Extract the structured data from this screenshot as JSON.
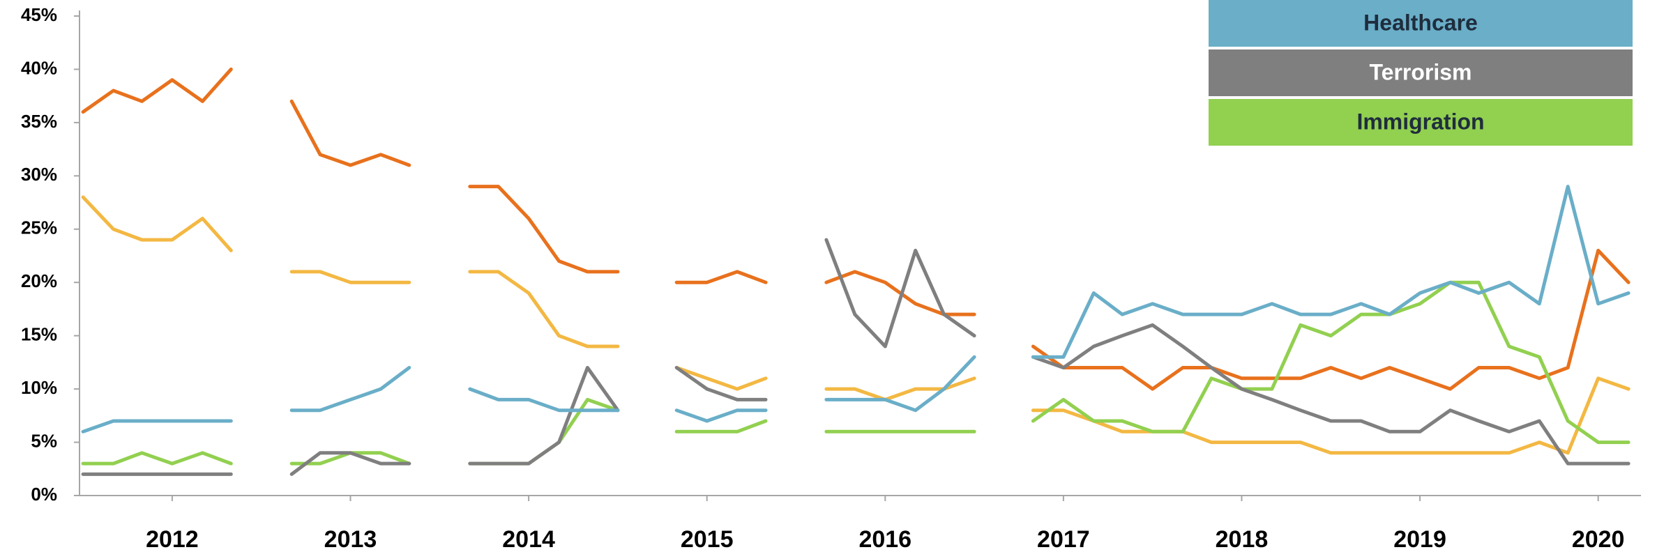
{
  "chart_data": {
    "type": "line",
    "x": [
      2011.5,
      2011.67,
      2011.83,
      2012.0,
      2012.17,
      2012.33,
      2012.5,
      2012.67,
      2012.83,
      2013.0,
      2013.17,
      2013.33,
      2013.5,
      2013.67,
      2013.83,
      2014.0,
      2014.17,
      2014.33,
      2014.5,
      2014.67,
      2014.83,
      2015.0,
      2015.17,
      2015.33,
      2015.5,
      2015.67,
      2015.83,
      2016.0,
      2016.17,
      2016.33,
      2016.5,
      2016.67,
      2016.83,
      2017.0,
      2017.17,
      2017.33,
      2017.5,
      2017.67,
      2017.83,
      2018.0,
      2018.17,
      2018.33,
      2018.5,
      2018.67,
      2018.83,
      2019.0,
      2019.17,
      2019.33,
      2019.5,
      2019.67,
      2019.83,
      2020.0,
      2020.17
    ],
    "series": [
      {
        "name": "Healthcare",
        "color": "#6aaec8",
        "text_color": "#1f2d3d",
        "values": [
          6,
          7,
          7,
          7,
          7,
          7,
          null,
          8,
          8,
          9,
          10,
          12,
          null,
          10,
          9,
          9,
          8,
          8,
          8,
          null,
          8,
          7,
          8,
          8,
          null,
          9,
          9,
          9,
          8,
          10,
          13,
          null,
          13,
          13,
          19,
          17,
          18,
          17,
          17,
          17,
          18,
          17,
          17,
          18,
          17,
          19,
          20,
          19,
          20,
          18,
          29,
          18,
          19
        ]
      },
      {
        "name": "Terrorism",
        "color": "#7f7f7f",
        "text_color": "#ffffff",
        "values": [
          2,
          2,
          2,
          2,
          2,
          2,
          null,
          2,
          4,
          4,
          3,
          3,
          null,
          3,
          3,
          3,
          5,
          12,
          8,
          null,
          12,
          10,
          9,
          9,
          null,
          24,
          17,
          14,
          23,
          17,
          15,
          null,
          13,
          12,
          14,
          15,
          16,
          14,
          12,
          10,
          9,
          8,
          7,
          7,
          6,
          6,
          8,
          7,
          6,
          7,
          3,
          3,
          3
        ]
      },
      {
        "name": "Immigration",
        "color": "#92d050",
        "text_color": "#1f2d3d",
        "values": [
          3,
          3,
          4,
          3,
          4,
          3,
          null,
          3,
          3,
          4,
          4,
          3,
          null,
          3,
          3,
          3,
          5,
          9,
          8,
          null,
          6,
          6,
          6,
          7,
          null,
          6,
          6,
          6,
          6,
          6,
          6,
          null,
          7,
          9,
          7,
          7,
          6,
          6,
          11,
          10,
          10,
          16,
          15,
          17,
          17,
          18,
          20,
          20,
          14,
          13,
          7,
          5,
          5
        ]
      },
      {
        "color": "#e8711d",
        "values": [
          36,
          38,
          37,
          39,
          37,
          40,
          null,
          37,
          32,
          31,
          32,
          31,
          null,
          29,
          29,
          26,
          22,
          21,
          21,
          null,
          20,
          20,
          21,
          20,
          null,
          20,
          21,
          20,
          18,
          17,
          17,
          null,
          14,
          12,
          12,
          12,
          10,
          12,
          12,
          11,
          11,
          11,
          12,
          11,
          12,
          11,
          10,
          12,
          12,
          11,
          12,
          23,
          20
        ]
      },
      {
        "color": "#f3b843",
        "values": [
          28,
          25,
          24,
          24,
          26,
          23,
          null,
          21,
          21,
          20,
          20,
          20,
          null,
          21,
          21,
          19,
          15,
          14,
          14,
          null,
          12,
          11,
          10,
          11,
          null,
          10,
          10,
          9,
          10,
          10,
          11,
          null,
          8,
          8,
          7,
          6,
          6,
          6,
          5,
          5,
          5,
          5,
          4,
          4,
          4,
          4,
          4,
          4,
          4,
          5,
          4,
          11,
          10
        ]
      }
    ],
    "xlim": [
      2011.48,
      2020.24
    ],
    "xticks": [
      2012,
      2013,
      2014,
      2015,
      2016,
      2017,
      2018,
      2019,
      2020
    ],
    "ylim": [
      0,
      45
    ],
    "yticks": [
      {
        "value": 0,
        "label": "0%"
      },
      {
        "value": 5,
        "label": "5%"
      },
      {
        "value": 10,
        "label": "10%"
      },
      {
        "value": 15,
        "label": "15%"
      },
      {
        "value": 20,
        "label": "20%"
      },
      {
        "value": 25,
        "label": "25%"
      },
      {
        "value": 30,
        "label": "30%"
      },
      {
        "value": 35,
        "label": "35%"
      },
      {
        "value": 40,
        "label": "40%"
      },
      {
        "value": 45,
        "label": "45%"
      }
    ]
  }
}
